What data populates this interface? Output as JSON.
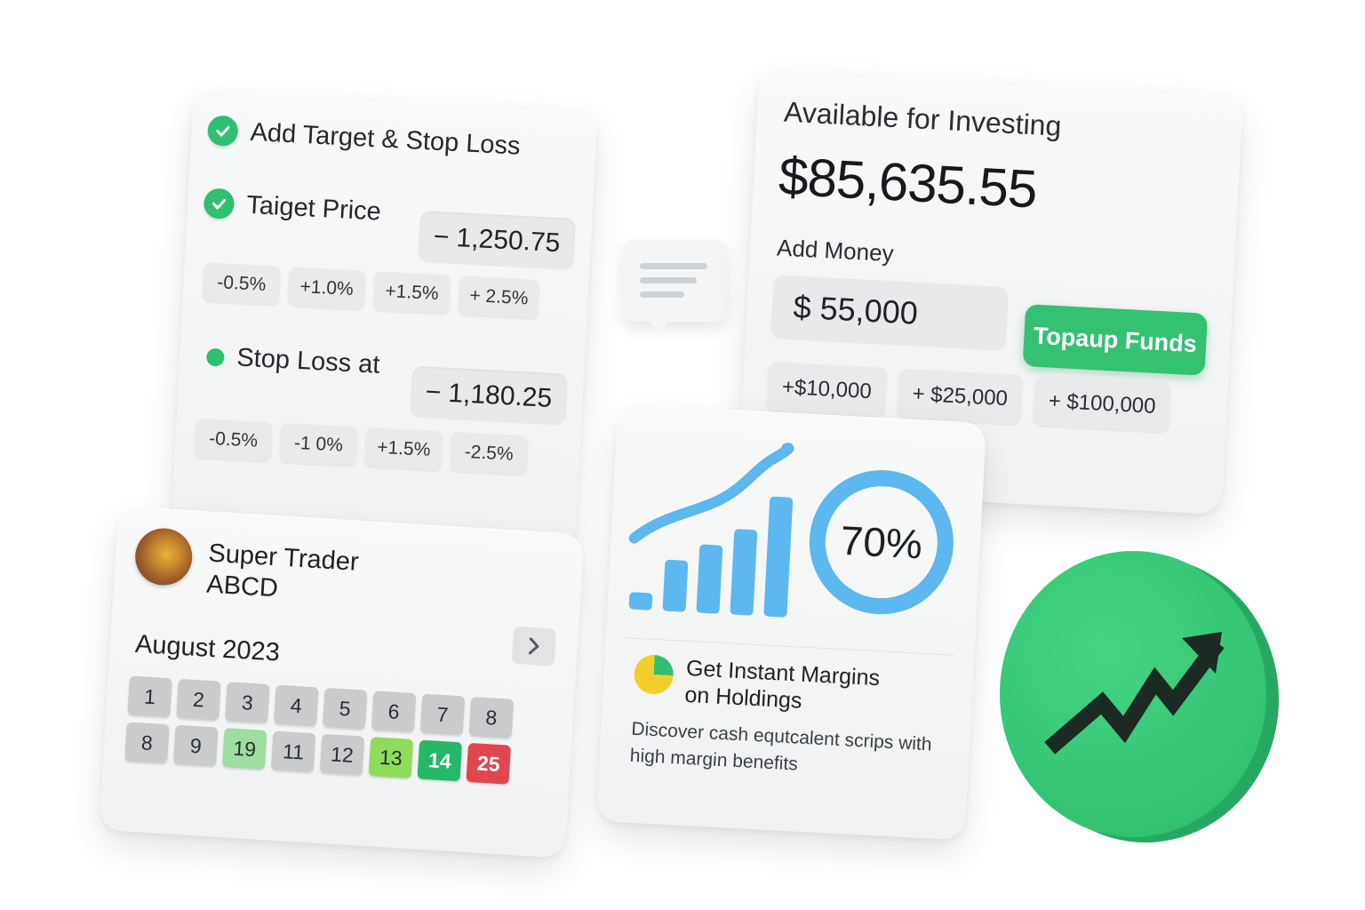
{
  "target_card": {
    "add_target_label": "Add Target & Stop Loss",
    "target_price_label": "Taiget Price",
    "target_price_value": "− 1,250.75",
    "target_chips": [
      "-0.5%",
      "+1.0%",
      "+1.5%",
      "+ 2.5%"
    ],
    "stop_loss_label": "Stop Loss at",
    "stop_loss_value": "− 1,180.25",
    "stop_chips": [
      "-0.5%",
      "-1 0%",
      "+1.5%",
      "-2.5%"
    ]
  },
  "available_card": {
    "title": "Available for Investing",
    "amount": "$85,635.55",
    "add_money_label": "Add Money",
    "money_input_value": "$ 55,000",
    "topup_button": "Topaup Funds",
    "money_chips": [
      "+$10,000",
      "+ $25,000",
      "+ $100,000"
    ]
  },
  "trader_card": {
    "name_line1": "Super Trader",
    "name_line2": "ABCD",
    "month": "August 2023",
    "days": [
      {
        "label": "1",
        "status": "default"
      },
      {
        "label": "2",
        "status": "default"
      },
      {
        "label": "3",
        "status": "default"
      },
      {
        "label": "4",
        "status": "default"
      },
      {
        "label": "5",
        "status": "default"
      },
      {
        "label": "6",
        "status": "default"
      },
      {
        "label": "7",
        "status": "default"
      },
      {
        "label": "8",
        "status": "default"
      },
      {
        "label": "8",
        "status": "default"
      },
      {
        "label": "9",
        "status": "default"
      },
      {
        "label": "19",
        "status": "light-green"
      },
      {
        "label": "11",
        "status": "default"
      },
      {
        "label": "12",
        "status": "default"
      },
      {
        "label": "13",
        "status": "lime"
      },
      {
        "label": "14",
        "status": "green"
      },
      {
        "label": "25",
        "status": "red"
      }
    ]
  },
  "margin_card": {
    "percent": "70%",
    "percent_value": 0.7,
    "bar_values": [
      1,
      3,
      4,
      5,
      7
    ],
    "title_line1": "Get Instant Margins",
    "title_line2": "on Holdings",
    "description": "Discover cash equtcalent scrips with high margin benefits"
  },
  "colors": {
    "accent_green": "#34c172",
    "chart_blue": "#5cb8ee",
    "red": "#e0474c"
  },
  "icons": {
    "check": "check-circle-icon",
    "chat": "chat-bubble-icon",
    "chevron": "chevron-right-icon",
    "trend": "trending-up-icon",
    "pie": "pie-chart-icon"
  }
}
